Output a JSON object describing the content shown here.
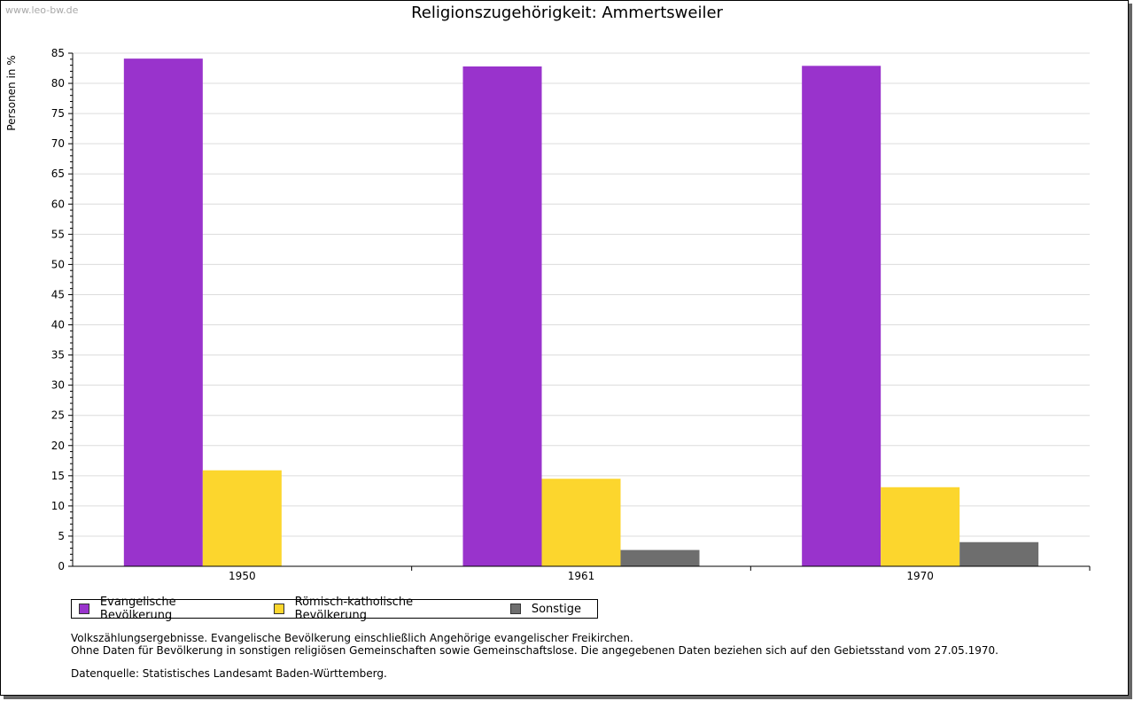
{
  "watermark": "www.leo-bw.de",
  "chart_data": {
    "type": "bar",
    "title": "Religionszugehörigkeit: Ammertsweiler",
    "xlabel": "",
    "ylabel": "Personen in %",
    "ylim": [
      0,
      85
    ],
    "yticks": [
      0,
      5,
      10,
      15,
      20,
      25,
      30,
      35,
      40,
      45,
      50,
      55,
      60,
      65,
      70,
      75,
      80,
      85
    ],
    "categories": [
      "1950",
      "1961",
      "1970"
    ],
    "series": [
      {
        "name": "Evangelische Bevölkerung",
        "color": "#9933cc",
        "values": [
          84.1,
          82.8,
          82.9
        ]
      },
      {
        "name": "Römisch-katholische Bevölkerung",
        "color": "#fcd62d",
        "values": [
          15.9,
          14.5,
          13.1
        ]
      },
      {
        "name": "Sonstige",
        "color": "#6e6e6e",
        "values": [
          null,
          2.7,
          4.0
        ]
      }
    ],
    "legend_position": "bottom-left"
  },
  "notes": {
    "line1": "Volkszählungsergebnisse. Evangelische Bevölkerung einschließlich Angehörige evangelischer Freikirchen.",
    "line2": "Ohne Daten für Bevölkerung in sonstigen religiösen Gemeinschaften sowie Gemeinschaftslose. Die angegebenen Daten beziehen sich auf den Gebietsstand vom 27.05.1970.",
    "source": "Datenquelle: Statistisches Landesamt Baden-Württemberg."
  }
}
